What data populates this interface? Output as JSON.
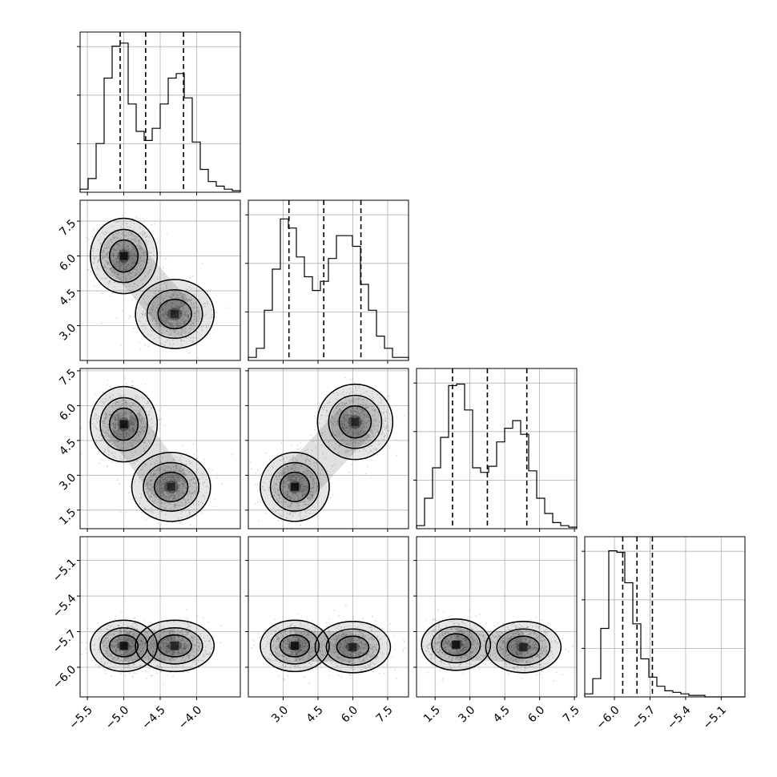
{
  "chart_data": {
    "type": "corner",
    "grid": true,
    "parameters": [
      {
        "range": [
          -5.6,
          -3.4
        ],
        "ticks": [
          -5.5,
          -5.0,
          -4.5,
          -4.0
        ],
        "labels": [
          "−5.5",
          "−5.0",
          "−4.5",
          "−4.0"
        ],
        "quantiles": [
          -5.05,
          -4.7,
          -4.18
        ],
        "modes": [
          {
            "mean": -5.0,
            "sd": 0.17,
            "weight": 0.52
          },
          {
            "mean": -4.3,
            "sd": 0.2,
            "weight": 0.48
          }
        ]
      },
      {
        "range": [
          1.5,
          8.4
        ],
        "ticks": [
          3.0,
          4.5,
          6.0,
          7.5
        ],
        "labels": [
          "3.0",
          "4.5",
          "6.0",
          "7.5"
        ],
        "quantiles": [
          3.25,
          4.75,
          6.35
        ],
        "modes": [
          {
            "mean": 3.4,
            "sd": 0.55,
            "weight": 0.5
          },
          {
            "mean": 6.1,
            "sd": 0.6,
            "weight": 0.5
          }
        ]
      },
      {
        "range": [
          0.7,
          7.6
        ],
        "ticks": [
          1.5,
          3.0,
          4.5,
          6.0,
          7.5
        ],
        "labels": [
          "1.5",
          "3.0",
          "4.5",
          "6.0",
          "7.5"
        ],
        "quantiles": [
          2.25,
          3.75,
          5.45
        ],
        "modes": [
          {
            "mean": 2.45,
            "sd": 0.55,
            "weight": 0.5
          },
          {
            "mean": 5.3,
            "sd": 0.6,
            "weight": 0.5
          }
        ]
      },
      {
        "range": [
          -6.25,
          -4.9
        ],
        "ticks": [
          -6.0,
          -5.7,
          -5.4,
          -5.1
        ],
        "labels": [
          "−6.0",
          "−5.7",
          "−5.4",
          "−5.1"
        ],
        "quantiles": [
          -5.93,
          -5.81,
          -5.68
        ],
        "modes": [
          {
            "mean": -5.8,
            "sd": 0.08,
            "weight": 1.0
          }
        ]
      }
    ],
    "histograms": [
      {
        "param": 0,
        "bins": 20,
        "counts": [
          0.02,
          0.09,
          0.32,
          0.75,
          0.96,
          0.98,
          0.58,
          0.4,
          0.34,
          0.42,
          0.58,
          0.75,
          0.78,
          0.62,
          0.33,
          0.15,
          0.07,
          0.04,
          0.02,
          0.01
        ]
      },
      {
        "param": 1,
        "bins": 20,
        "counts": [
          0.02,
          0.08,
          0.33,
          0.6,
          0.93,
          0.87,
          0.68,
          0.55,
          0.46,
          0.52,
          0.67,
          0.82,
          0.82,
          0.75,
          0.5,
          0.33,
          0.16,
          0.08,
          0.02,
          0.02
        ]
      },
      {
        "param": 2,
        "bins": 20,
        "counts": [
          0.02,
          0.2,
          0.4,
          0.6,
          0.94,
          0.95,
          0.78,
          0.4,
          0.37,
          0.41,
          0.57,
          0.66,
          0.71,
          0.62,
          0.38,
          0.2,
          0.1,
          0.04,
          0.02,
          0.01
        ]
      },
      {
        "param": 3,
        "bins": 20,
        "counts": [
          0.02,
          0.12,
          0.45,
          0.96,
          0.95,
          0.75,
          0.48,
          0.25,
          0.13,
          0.07,
          0.04,
          0.03,
          0.02,
          0.01,
          0.01,
          0.0,
          0.0,
          0.0,
          0.0,
          0.0
        ]
      }
    ],
    "pairs": [
      {
        "row": 1,
        "col": 0,
        "modes": [
          {
            "x": -5.0,
            "y": 6.0,
            "w": 0.5
          },
          {
            "x": -4.3,
            "y": 3.5,
            "w": 0.5
          }
        ]
      },
      {
        "row": 2,
        "col": 0,
        "modes": [
          {
            "x": -5.0,
            "y": 5.2,
            "w": 0.5
          },
          {
            "x": -4.35,
            "y": 2.5,
            "w": 0.5
          }
        ]
      },
      {
        "row": 2,
        "col": 1,
        "modes": [
          {
            "x": 3.5,
            "y": 2.5,
            "w": 0.5
          },
          {
            "x": 6.1,
            "y": 5.3,
            "w": 0.5
          }
        ]
      },
      {
        "row": 3,
        "col": 0,
        "modes": [
          {
            "x": -5.0,
            "y": -5.82,
            "w": 0.5
          },
          {
            "x": -4.3,
            "y": -5.82,
            "w": 0.5
          }
        ]
      },
      {
        "row": 3,
        "col": 1,
        "modes": [
          {
            "x": 3.5,
            "y": -5.82,
            "w": 0.5
          },
          {
            "x": 6.0,
            "y": -5.83,
            "w": 0.5
          }
        ]
      },
      {
        "row": 3,
        "col": 2,
        "modes": [
          {
            "x": 2.4,
            "y": -5.81,
            "w": 0.5
          },
          {
            "x": 5.3,
            "y": -5.83,
            "w": 0.5
          }
        ]
      }
    ]
  }
}
